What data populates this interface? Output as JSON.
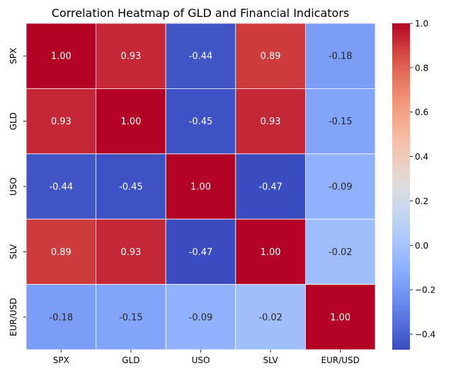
{
  "chart_data": {
    "type": "heatmap",
    "title": "Correlation Heatmap of GLD and Financial Indicators",
    "xlabel": "",
    "ylabel": "",
    "x_categories": [
      "SPX",
      "GLD",
      "USO",
      "SLV",
      "EUR/USD"
    ],
    "y_categories": [
      "SPX",
      "GLD",
      "USO",
      "SLV",
      "EUR/USD"
    ],
    "values": [
      [
        1.0,
        0.93,
        -0.44,
        0.89,
        -0.18
      ],
      [
        0.93,
        1.0,
        -0.45,
        0.93,
        -0.15
      ],
      [
        -0.44,
        -0.45,
        1.0,
        -0.47,
        -0.09
      ],
      [
        0.89,
        0.93,
        -0.47,
        1.0,
        -0.02
      ],
      [
        -0.18,
        -0.15,
        -0.09,
        -0.02,
        1.0
      ]
    ],
    "value_format": "2 decimals",
    "colormap": "coolwarm",
    "color_range": [
      -0.47,
      1.0
    ],
    "colorbar_ticks": [
      1.0,
      0.8,
      0.6,
      0.4,
      0.2,
      0.0,
      -0.2,
      -0.4
    ],
    "colorbar_tick_labels": [
      "1.0",
      "0.8",
      "0.6",
      "0.4",
      "0.2",
      "0.0",
      "−0.2",
      "−0.4"
    ],
    "grid": true,
    "legend": "colorbar-right"
  }
}
